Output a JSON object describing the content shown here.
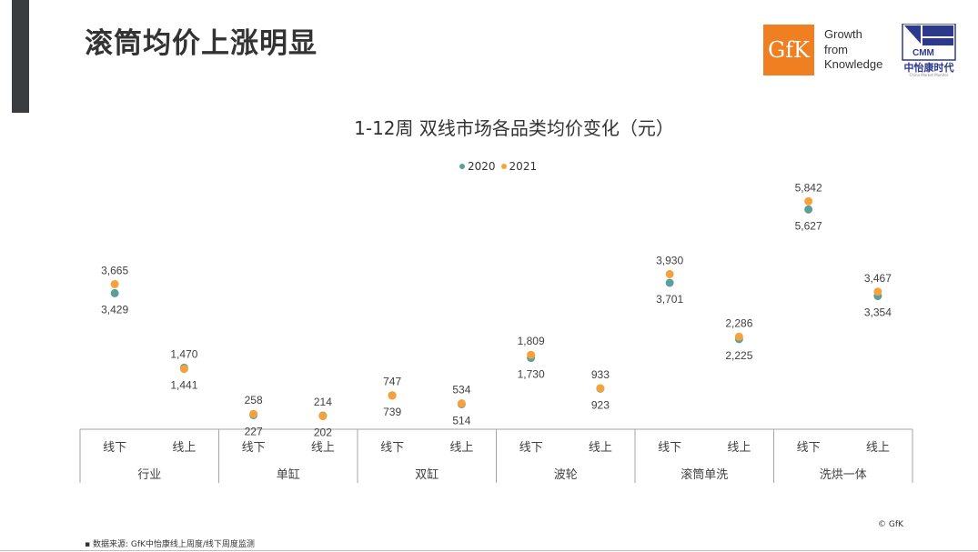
{
  "page": {
    "title": "滚筒均价上涨明显",
    "logo_gfk_text": "GfK",
    "tagline": [
      "Growth",
      "from",
      "Knowledge"
    ],
    "cmm_logo_text": "CMM",
    "cmm_name": "中怡康时代",
    "cmm_subtitle": "China Market Monitor",
    "source": "▪  数据来源:  GfK中怡康线上周度/线下周度监测",
    "copyright": "© GfK"
  },
  "colors": {
    "y2020": "#5b9e9a",
    "y2021": "#f5a23c",
    "axis": "#a6a6a6",
    "text": "#404040"
  },
  "chart_data": {
    "type": "scatter",
    "title": "1-12周 双线市场各品类均价变化（元）",
    "legend": {
      "position": "top-center",
      "entries": [
        "2020",
        "2021"
      ]
    },
    "groups": [
      "行业",
      "单缸",
      "双缸",
      "波轮",
      "滚筒单洗",
      "洗烘一体"
    ],
    "channels": [
      "线下",
      "线上"
    ],
    "series": [
      {
        "name": "2020",
        "values": [
          3429,
          1470,
          227,
          214,
          747,
          514,
          1730,
          923,
          3701,
          2225,
          5627,
          3354
        ]
      },
      {
        "name": "2021",
        "values": [
          3665,
          1441,
          258,
          202,
          739,
          534,
          1809,
          933,
          3930,
          2286,
          5842,
          3467
        ]
      }
    ],
    "value_labels_2020": [
      "3,429",
      "1,470",
      "227",
      "214",
      "747",
      "514",
      "1,730",
      "923",
      "3,701",
      "2,225",
      "5,627",
      "3,354"
    ],
    "value_labels_2021": [
      "3,665",
      "1,441",
      "258",
      "202",
      "739",
      "534",
      "1,809",
      "933",
      "3,930",
      "2,286",
      "5,842",
      "3,467"
    ],
    "ylim": [
      0,
      6000
    ],
    "grid": false
  }
}
